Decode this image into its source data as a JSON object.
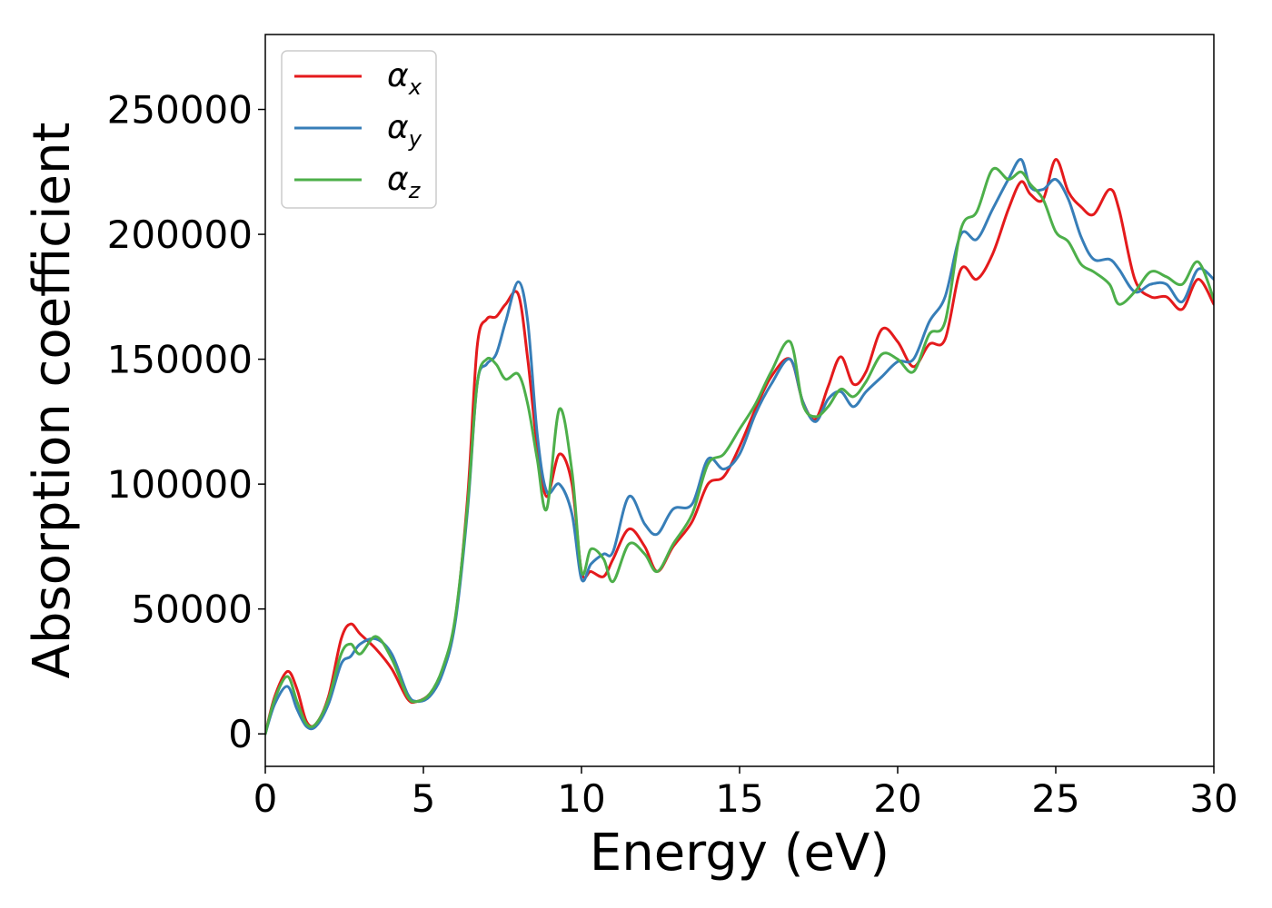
{
  "chart_data": {
    "type": "line",
    "xlabel": "Energy (eV)",
    "ylabel": "Absorption coefficient",
    "xlim": [
      0,
      30
    ],
    "ylim": [
      -13000,
      280000
    ],
    "xticks": [
      0,
      5,
      10,
      15,
      20,
      25,
      30
    ],
    "yticks": [
      0,
      50000,
      100000,
      150000,
      200000,
      250000
    ],
    "grid": false,
    "legend_position": "upper-left",
    "series": [
      {
        "name": "α_x",
        "label_main": "α",
        "label_sub": "x",
        "color": "#e41a1c",
        "x": [
          0,
          0.3,
          0.7,
          1.0,
          1.3,
          1.6,
          2.0,
          2.4,
          2.7,
          3.0,
          3.5,
          4.0,
          4.5,
          4.8,
          5.2,
          5.6,
          6.0,
          6.4,
          6.7,
          7.0,
          7.3,
          7.6,
          8.0,
          8.3,
          8.6,
          8.9,
          9.3,
          9.7,
          10.0,
          10.3,
          10.7,
          11.0,
          11.5,
          12.0,
          12.4,
          12.9,
          13.5,
          14.0,
          14.5,
          15.0,
          15.5,
          16.0,
          16.6,
          17.0,
          17.4,
          17.8,
          18.2,
          18.6,
          19.0,
          19.5,
          20.0,
          20.5,
          21.0,
          21.5,
          22.0,
          22.5,
          23.0,
          23.5,
          23.9,
          24.2,
          24.6,
          25.0,
          25.4,
          25.8,
          26.2,
          26.7,
          27.0,
          27.5,
          28.0,
          28.5,
          29.0,
          29.5,
          30.0
        ],
        "y": [
          0,
          15000,
          25000,
          18000,
          5000,
          4000,
          15000,
          38000,
          44000,
          40000,
          34000,
          26000,
          14000,
          13000,
          16000,
          25000,
          45000,
          95000,
          155000,
          166000,
          167000,
          172000,
          176000,
          150000,
          115000,
          95000,
          112000,
          100000,
          65000,
          65000,
          63000,
          70000,
          82000,
          75000,
          65000,
          75000,
          85000,
          100000,
          103000,
          115000,
          130000,
          143000,
          150000,
          133000,
          126000,
          139000,
          151000,
          140000,
          145000,
          162000,
          157000,
          147000,
          156000,
          158000,
          186000,
          182000,
          192000,
          210000,
          221000,
          216000,
          214000,
          230000,
          217000,
          211000,
          208000,
          218000,
          210000,
          182000,
          175000,
          175000,
          170000,
          182000,
          172000
        ]
      },
      {
        "name": "α_y",
        "label_main": "α",
        "label_sub": "y",
        "color": "#377eb8",
        "x": [
          0,
          0.3,
          0.7,
          1.0,
          1.3,
          1.6,
          2.0,
          2.4,
          2.7,
          3.0,
          3.5,
          4.0,
          4.5,
          4.8,
          5.2,
          5.6,
          6.0,
          6.4,
          6.7,
          7.0,
          7.3,
          7.6,
          8.0,
          8.3,
          8.6,
          8.9,
          9.3,
          9.7,
          10.0,
          10.3,
          10.7,
          11.0,
          11.5,
          12.0,
          12.4,
          12.9,
          13.5,
          14.0,
          14.5,
          15.0,
          15.5,
          16.0,
          16.6,
          17.0,
          17.4,
          17.8,
          18.2,
          18.6,
          19.0,
          19.5,
          20.0,
          20.5,
          21.0,
          21.5,
          22.0,
          22.5,
          23.0,
          23.5,
          23.9,
          24.2,
          24.6,
          25.0,
          25.4,
          25.8,
          26.2,
          26.7,
          27.0,
          27.5,
          28.0,
          28.5,
          29.0,
          29.5,
          30.0
        ],
        "y": [
          0,
          12000,
          19000,
          10000,
          3000,
          3000,
          12000,
          28000,
          31000,
          36000,
          38000,
          32000,
          16000,
          13000,
          15000,
          24000,
          44000,
          90000,
          140000,
          148000,
          152000,
          165000,
          181000,
          165000,
          120000,
          97000,
          100000,
          88000,
          62000,
          68000,
          72000,
          73000,
          95000,
          84000,
          80000,
          90000,
          92000,
          110000,
          106000,
          112000,
          128000,
          140000,
          150000,
          133000,
          125000,
          134000,
          137000,
          131000,
          137000,
          143000,
          149000,
          150000,
          165000,
          175000,
          200000,
          198000,
          210000,
          222000,
          230000,
          219000,
          218000,
          222000,
          214000,
          199000,
          190000,
          190000,
          186000,
          177000,
          180000,
          180000,
          173000,
          186000,
          182000
        ]
      },
      {
        "name": "α_z",
        "label_main": "α",
        "label_sub": "z",
        "color": "#4daf4a",
        "x": [
          0,
          0.3,
          0.7,
          1.0,
          1.3,
          1.6,
          2.0,
          2.4,
          2.7,
          3.0,
          3.5,
          4.0,
          4.5,
          4.8,
          5.2,
          5.6,
          6.0,
          6.4,
          6.7,
          7.0,
          7.3,
          7.6,
          8.0,
          8.3,
          8.6,
          8.9,
          9.3,
          9.7,
          10.0,
          10.3,
          10.7,
          11.0,
          11.5,
          12.0,
          12.4,
          12.9,
          13.5,
          14.0,
          14.5,
          15.0,
          15.5,
          16.0,
          16.6,
          17.0,
          17.4,
          17.8,
          18.2,
          18.6,
          19.0,
          19.5,
          20.0,
          20.5,
          21.0,
          21.5,
          22.0,
          22.5,
          23.0,
          23.5,
          23.9,
          24.2,
          24.6,
          25.0,
          25.4,
          25.8,
          26.2,
          26.7,
          27.0,
          27.5,
          28.0,
          28.5,
          29.0,
          29.5,
          30.0
        ],
        "y": [
          0,
          14000,
          23000,
          13000,
          4000,
          4000,
          14000,
          32000,
          36000,
          32000,
          39000,
          30000,
          15000,
          13000,
          16000,
          26000,
          46000,
          92000,
          140000,
          150000,
          148000,
          142000,
          144000,
          132000,
          110000,
          90000,
          130000,
          105000,
          65000,
          74000,
          70000,
          61000,
          76000,
          72000,
          65000,
          76000,
          88000,
          108000,
          112000,
          122000,
          132000,
          145000,
          157000,
          132000,
          127000,
          131000,
          138000,
          135000,
          141000,
          152000,
          150000,
          145000,
          160000,
          165000,
          202000,
          209000,
          226000,
          222000,
          225000,
          220000,
          214000,
          201000,
          197000,
          188000,
          185000,
          180000,
          172000,
          177000,
          185000,
          183000,
          180000,
          189000,
          174000
        ]
      }
    ]
  }
}
